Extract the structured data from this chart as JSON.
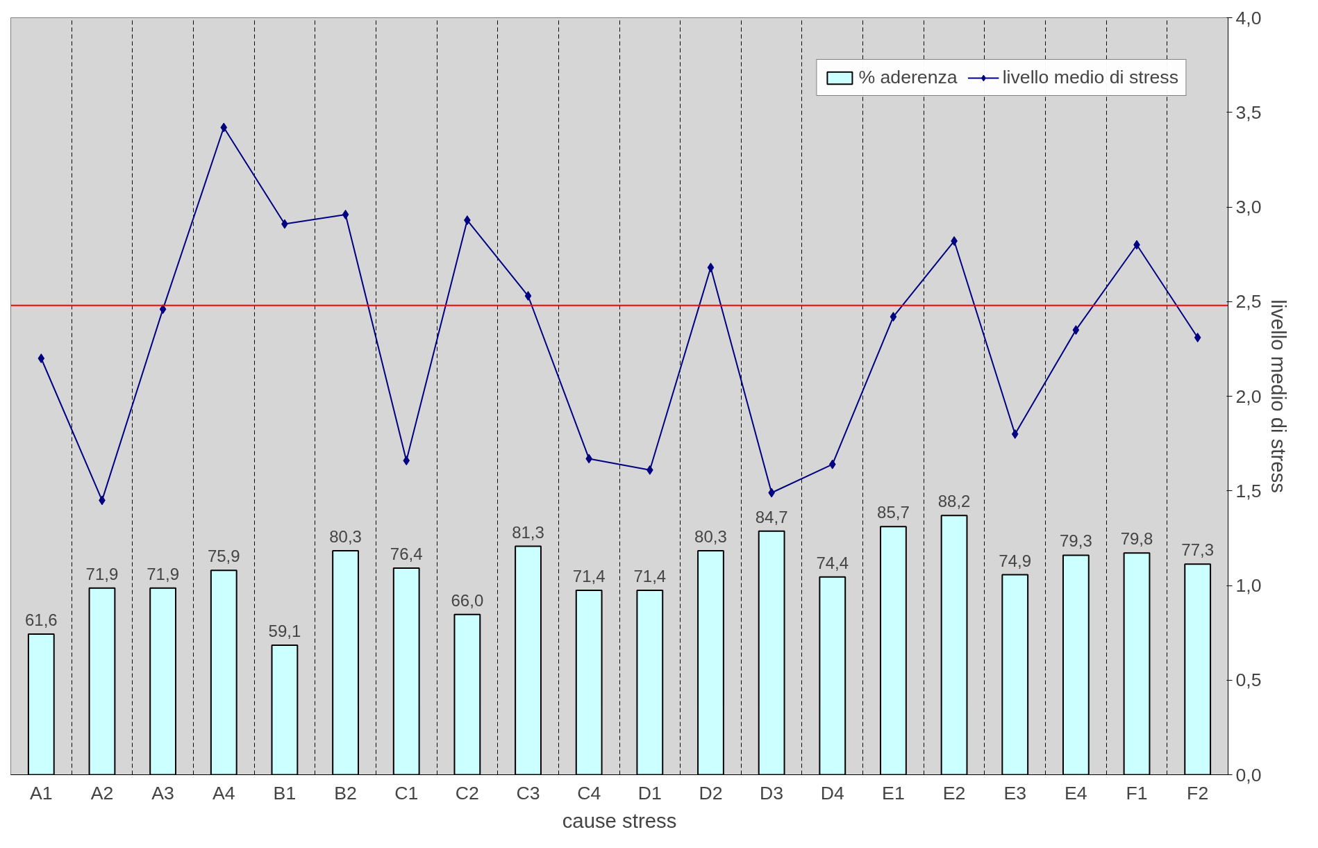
{
  "chart_data": {
    "type": "bar",
    "xlabel": "cause stress",
    "ylabel": "livello medio di stress",
    "categories": [
      "A1",
      "A2",
      "A3",
      "A4",
      "B1",
      "B2",
      "C1",
      "C2",
      "C3",
      "C4",
      "D1",
      "D2",
      "D3",
      "D4",
      "E1",
      "E2",
      "E3",
      "E4",
      "F1",
      "F2"
    ],
    "series": [
      {
        "name": "% aderenza",
        "axis": "y2",
        "color": "#ccffff",
        "values": [
          61.6,
          71.9,
          71.9,
          75.9,
          59.1,
          80.3,
          76.4,
          66.0,
          81.3,
          71.4,
          71.4,
          80.3,
          84.7,
          74.4,
          85.7,
          88.2,
          74.9,
          79.3,
          79.8,
          77.3
        ],
        "value_labels": [
          "61,6",
          "71,9",
          "71,9",
          "75,9",
          "59,1",
          "80,3",
          "76,4",
          "66,0",
          "81,3",
          "71,4",
          "71,4",
          "80,3",
          "84,7",
          "74,4",
          "85,7",
          "88,2",
          "74,9",
          "79,3",
          "79,8",
          "77,3"
        ]
      },
      {
        "name": "livello medio di stress",
        "type": "line",
        "color": "#000080",
        "values": [
          2.2,
          1.45,
          2.46,
          3.42,
          2.91,
          2.96,
          1.66,
          2.93,
          2.53,
          1.67,
          1.61,
          2.68,
          1.49,
          1.64,
          2.42,
          2.82,
          1.8,
          2.35,
          2.8,
          2.31
        ]
      }
    ],
    "ylim": [
      0,
      4
    ],
    "yticks": [
      {
        "value": 0,
        "label": "0,0"
      },
      {
        "value": 0.5,
        "label": "0,5"
      },
      {
        "value": 1,
        "label": "1,0"
      },
      {
        "value": 1.5,
        "label": "1,5"
      },
      {
        "value": 2,
        "label": "2,0"
      },
      {
        "value": 2.5,
        "label": "2,5"
      },
      {
        "value": 3,
        "label": "3,0"
      },
      {
        "value": 3.5,
        "label": "3,5"
      },
      {
        "value": 4,
        "label": "4,0"
      }
    ],
    "y2lim": [
      30,
      200
    ],
    "ref_lines": [
      {
        "axis": "y",
        "value": 2.48,
        "color": "#ff0000"
      }
    ],
    "grid": "x",
    "legend": "top right",
    "marker": "diamond",
    "line_style": "solid"
  }
}
